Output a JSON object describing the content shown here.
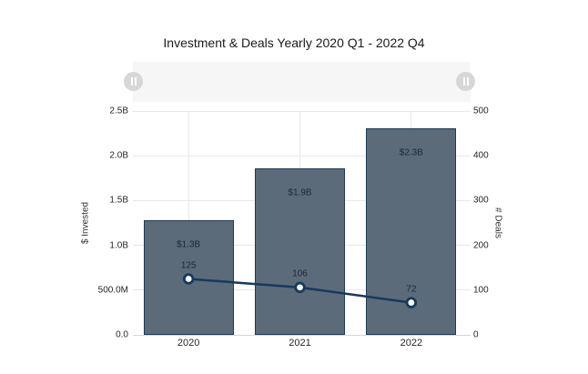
{
  "chart_data": {
    "type": "combo-bar-line",
    "title": "Investment & Deals Yearly 2020 Q1 - 2022 Q4",
    "categories": [
      "2020",
      "2021",
      "2022"
    ],
    "series": [
      {
        "name": "$ Invested",
        "type": "bar",
        "axis": "left",
        "values": [
          1280000000,
          1860000000,
          2310000000
        ],
        "labels": [
          "$1.3B",
          "$1.9B",
          "$2.3B"
        ]
      },
      {
        "name": "# Deals",
        "type": "line",
        "axis": "right",
        "values": [
          125,
          106,
          72
        ],
        "labels": [
          "125",
          "106",
          "72"
        ]
      }
    ],
    "left_axis": {
      "title": "$ Invested",
      "max": 2500000000,
      "ticks": [
        {
          "label": "0.0",
          "value": 0
        },
        {
          "label": "500.0M",
          "value": 500000000
        },
        {
          "label": "1.0B",
          "value": 1000000000
        },
        {
          "label": "1.5B",
          "value": 1500000000
        },
        {
          "label": "2.0B",
          "value": 2000000000
        },
        {
          "label": "2.5B",
          "value": 2500000000
        }
      ]
    },
    "right_axis": {
      "title": "# Deals",
      "max": 500,
      "ticks": [
        {
          "label": "0",
          "value": 0
        },
        {
          "label": "100",
          "value": 100
        },
        {
          "label": "200",
          "value": 200
        },
        {
          "label": "300",
          "value": 300
        },
        {
          "label": "400",
          "value": 400
        },
        {
          "label": "500",
          "value": 500
        }
      ]
    },
    "legend": "none",
    "grid": true
  },
  "slider": {
    "handle_icon": "pause-grip-icon"
  },
  "colors": {
    "background": "#ffffff",
    "bar_fill": "#5c6b7a",
    "bar_border": "#1e3a53",
    "line": "#17395c",
    "point_fill": "#ffffff",
    "grid": "#e8e8e8",
    "axis_line": "#d6d6d6",
    "tick_text": "#262626",
    "title_text": "#1a1a1a",
    "label_text": "#1d2733",
    "slider_track": "#f6f6f6",
    "slider_handle": "#d7d7d7",
    "slider_grip": "#ffffff"
  }
}
